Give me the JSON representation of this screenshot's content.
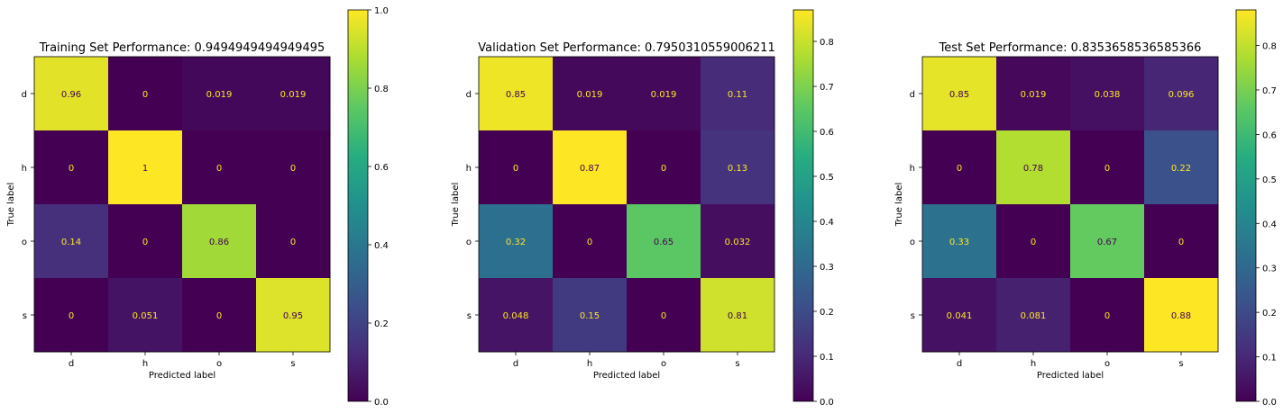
{
  "chart_data": [
    {
      "type": "heatmap",
      "title": "Training Set Performance: 0.9494949494949495",
      "xlabel": "Predicted label",
      "ylabel": "True label",
      "x_categories": [
        "d",
        "h",
        "o",
        "s"
      ],
      "y_categories": [
        "d",
        "h",
        "o",
        "s"
      ],
      "cell_labels": [
        [
          "0.96",
          "0",
          "0.019",
          "0.019"
        ],
        [
          "0",
          "1",
          "0",
          "0"
        ],
        [
          "0.14",
          "0",
          "0.86",
          "0"
        ],
        [
          "0",
          "0.051",
          "0",
          "0.95"
        ]
      ],
      "values": [
        [
          0.96,
          0,
          0.019,
          0.019
        ],
        [
          0,
          1,
          0,
          0
        ],
        [
          0.14,
          0,
          0.86,
          0
        ],
        [
          0,
          0.051,
          0,
          0.95
        ]
      ],
      "colorbar": {
        "vmin": 0.0,
        "vmax": 1.0,
        "ticks": [
          "0.0",
          "0.2",
          "0.4",
          "0.6",
          "0.8",
          "1.0"
        ],
        "tick_values": [
          0,
          0.2,
          0.4,
          0.6,
          0.8,
          1.0
        ]
      },
      "colormap": "viridis",
      "grid": false
    },
    {
      "type": "heatmap",
      "title": "Validation Set Performance: 0.7950310559006211",
      "xlabel": "Predicted label",
      "ylabel": "True label",
      "x_categories": [
        "d",
        "h",
        "o",
        "s"
      ],
      "y_categories": [
        "d",
        "h",
        "o",
        "s"
      ],
      "cell_labels": [
        [
          "0.85",
          "0.019",
          "0.019",
          "0.11"
        ],
        [
          "0",
          "0.87",
          "0",
          "0.13"
        ],
        [
          "0.32",
          "0",
          "0.65",
          "0.032"
        ],
        [
          "0.048",
          "0.15",
          "0",
          "0.81"
        ]
      ],
      "values": [
        [
          0.85,
          0.019,
          0.019,
          0.11
        ],
        [
          0,
          0.87,
          0,
          0.13
        ],
        [
          0.32,
          0,
          0.65,
          0.032
        ],
        [
          0.048,
          0.15,
          0,
          0.81
        ]
      ],
      "colorbar": {
        "vmin": 0.0,
        "vmax": 0.87,
        "ticks": [
          "0.0",
          "0.1",
          "0.2",
          "0.3",
          "0.4",
          "0.5",
          "0.6",
          "0.7",
          "0.8"
        ],
        "tick_values": [
          0,
          0.1,
          0.2,
          0.3,
          0.4,
          0.5,
          0.6,
          0.7,
          0.8
        ]
      },
      "colormap": "viridis",
      "grid": false
    },
    {
      "type": "heatmap",
      "title": "Test Set Performance: 0.8353658536585366",
      "xlabel": "Predicted label",
      "ylabel": "True label",
      "x_categories": [
        "d",
        "h",
        "o",
        "s"
      ],
      "y_categories": [
        "d",
        "h",
        "o",
        "s"
      ],
      "cell_labels": [
        [
          "0.85",
          "0.019",
          "0.038",
          "0.096"
        ],
        [
          "0",
          "0.78",
          "0",
          "0.22"
        ],
        [
          "0.33",
          "0",
          "0.67",
          "0"
        ],
        [
          "0.041",
          "0.081",
          "0",
          "0.88"
        ]
      ],
      "values": [
        [
          0.85,
          0.019,
          0.038,
          0.096
        ],
        [
          0,
          0.78,
          0,
          0.22
        ],
        [
          0.33,
          0,
          0.67,
          0
        ],
        [
          0.041,
          0.081,
          0,
          0.88
        ]
      ],
      "colorbar": {
        "vmin": 0.0,
        "vmax": 0.88,
        "ticks": [
          "0.0",
          "0.1",
          "0.2",
          "0.3",
          "0.4",
          "0.5",
          "0.6",
          "0.7",
          "0.8"
        ],
        "tick_values": [
          0,
          0.1,
          0.2,
          0.3,
          0.4,
          0.5,
          0.6,
          0.7,
          0.8
        ]
      },
      "colormap": "viridis",
      "grid": false
    }
  ]
}
